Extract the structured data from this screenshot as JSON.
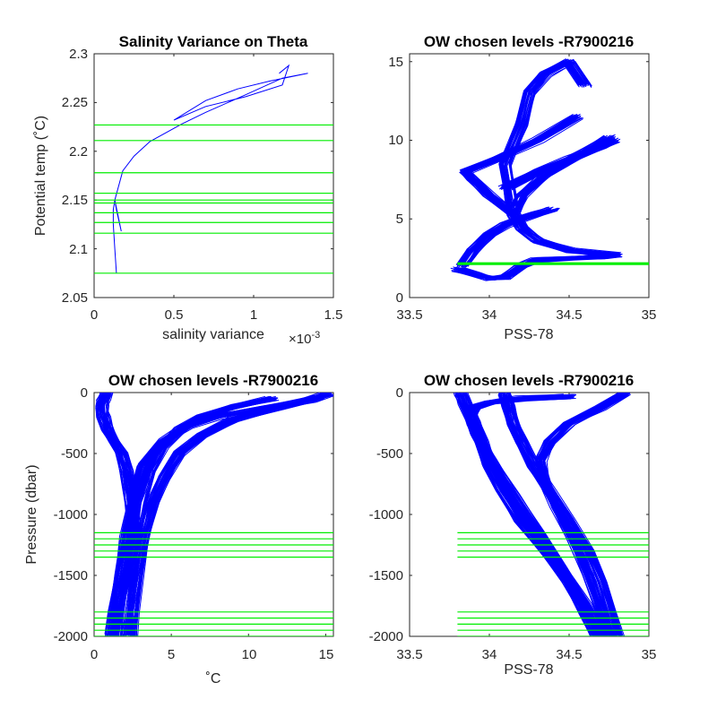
{
  "colors": {
    "profile": "#0000ff",
    "level": "#00ee00",
    "axis": "#262626"
  },
  "chart_data": [
    {
      "type": "line",
      "title": "Salinity Variance on Theta",
      "xlabel": "salinity variance",
      "xlabel_exponent": "×10",
      "xlabel_exponent_power": "-3",
      "ylabel": "Potential temp (˚C)",
      "xlim": [
        0,
        1.5
      ],
      "ylim": [
        2.05,
        2.3
      ],
      "xticks": [
        "0",
        "0.5",
        "1",
        "1.5"
      ],
      "yticks": [
        "2.05",
        "2.1",
        "2.15",
        "2.2",
        "2.25",
        "2.3"
      ],
      "grid": false,
      "series": [
        {
          "x": [
            0.14,
            0.13,
            0.12,
            0.12,
            0.13,
            0.17,
            0.14,
            0.13,
            0.18,
            0.25,
            0.35,
            0.55,
            0.7,
            0.95,
            1.18,
            1.34,
            1.1,
            0.9,
            0.7,
            0.5,
            0.7,
            0.95,
            1.18,
            1.22,
            1.16
          ],
          "y": [
            2.075,
            2.1,
            2.125,
            2.14,
            2.15,
            2.118,
            2.14,
            2.15,
            2.18,
            2.195,
            2.21,
            2.228,
            2.24,
            2.258,
            2.275,
            2.28,
            2.272,
            2.264,
            2.252,
            2.232,
            2.246,
            2.256,
            2.268,
            2.288,
            2.28
          ]
        }
      ],
      "levels_y": [
        2.075,
        2.116,
        2.127,
        2.137,
        2.147,
        2.15,
        2.157,
        2.178,
        2.211,
        2.227
      ]
    },
    {
      "type": "line",
      "title": "OW chosen levels -R7900216",
      "xlabel": "PSS-78",
      "ylabel": "",
      "xlim": [
        33.5,
        35
      ],
      "ylim": [
        0,
        15.5
      ],
      "xticks": [
        "33.5",
        "34",
        "34.5",
        "35"
      ],
      "yticks": [
        "0",
        "5",
        "10",
        "15"
      ],
      "grid": false,
      "series": [
        {
          "x": [
            33.8,
            33.9,
            34.0,
            34.1,
            34.2,
            34.3,
            34.5,
            34.7,
            34.79
          ],
          "y": [
            1.8,
            1.5,
            1.2,
            1.3,
            2.0,
            2.4,
            2.5,
            2.6,
            2.7
          ]
        },
        {
          "x": [
            34.79,
            34.5,
            34.3,
            34.2,
            34.15,
            34.2,
            34.35,
            34.55,
            34.75
          ],
          "y": [
            2.7,
            3.0,
            3.6,
            4.4,
            5.3,
            6.5,
            7.8,
            9.0,
            10.2
          ]
        },
        {
          "x": [
            34.15,
            34.0,
            33.9,
            33.85,
            34.05,
            34.3,
            34.55
          ],
          "y": [
            5.3,
            6.5,
            7.5,
            8.0,
            8.8,
            10.0,
            11.5
          ]
        },
        {
          "x": [
            34.15,
            34.1,
            34.2,
            34.25,
            34.35,
            34.5,
            34.6
          ],
          "y": [
            5.3,
            8.5,
            11.0,
            13.0,
            14.2,
            15.0,
            13.5
          ]
        },
        {
          "x": [
            33.83,
            33.9,
            34.0,
            34.1,
            34.2,
            34.3,
            34.4
          ],
          "y": [
            2.0,
            3.0,
            4.0,
            4.6,
            5.0,
            5.3,
            5.6
          ]
        },
        {
          "x": [
            34.1,
            34.3,
            34.5,
            34.7,
            34.78
          ],
          "y": [
            7.0,
            8.0,
            8.8,
            9.6,
            10.0
          ]
        }
      ],
      "levels_x": [
        33.8,
        35
      ],
      "levels_y": [
        2.1,
        2.13,
        2.15,
        2.18,
        2.21
      ]
    },
    {
      "type": "line",
      "title": "OW chosen levels -R7900216",
      "xlabel": "˚C",
      "ylabel": "Pressure (dbar)",
      "xlim": [
        0,
        15.5
      ],
      "ylim": [
        -2000,
        0
      ],
      "xticks": [
        "0",
        "5",
        "10",
        "15"
      ],
      "yticks": [
        "-2000",
        "-1500",
        "-1000",
        "-500",
        "0"
      ],
      "grid": false,
      "series": [
        {
          "x": [
            1.1,
            1.3,
            1.7,
            2.1,
            2.5,
            3.2,
            4.5,
            6.0,
            8.0,
            11.0,
            14.0,
            15.2
          ],
          "y": [
            -2000,
            -1800,
            -1500,
            -1200,
            -900,
            -600,
            -400,
            -280,
            -200,
            -130,
            -60,
            -10
          ]
        },
        {
          "x": [
            2.4,
            2.5,
            2.8,
            3.2,
            3.8,
            4.5,
            5.5,
            7.0,
            9.0,
            12.0,
            14.5
          ],
          "y": [
            -2000,
            -1800,
            -1500,
            -1200,
            -900,
            -700,
            -500,
            -350,
            -220,
            -120,
            -40
          ]
        },
        {
          "x": [
            1.6,
            1.8,
            2.2,
            2.6,
            3.0,
            3.6,
            4.4,
            5.6,
            7.0,
            9.0,
            11.5
          ],
          "y": [
            -2000,
            -1800,
            -1500,
            -1200,
            -900,
            -650,
            -450,
            -300,
            -200,
            -120,
            -50
          ]
        },
        {
          "x": [
            2.6,
            2.4,
            2.1,
            1.8,
            1.3,
            0.9,
            0.6,
            0.5,
            0.6,
            0.8
          ],
          "y": [
            -1200,
            -900,
            -650,
            -500,
            -400,
            -300,
            -200,
            -120,
            -60,
            0
          ]
        }
      ],
      "levels_y": [
        -1150,
        -1200,
        -1250,
        -1300,
        -1350,
        -1800,
        -1850,
        -1900,
        -1950,
        -2000
      ]
    },
    {
      "type": "line",
      "title": "OW chosen levels -R7900216",
      "xlabel": "PSS-78",
      "ylabel": "",
      "xlim": [
        33.5,
        35
      ],
      "ylim": [
        -2000,
        0
      ],
      "xticks": [
        "33.5",
        "34",
        "34.5",
        "35"
      ],
      "yticks": [
        "-2000",
        "-1500",
        "-1000",
        "-500",
        "0"
      ],
      "grid": false,
      "series": [
        {
          "x": [
            34.67,
            34.6,
            34.5,
            34.35,
            34.2,
            34.08,
            34.0,
            33.95,
            33.9,
            33.85,
            33.82
          ],
          "y": [
            -2000,
            -1800,
            -1550,
            -1300,
            -1050,
            -800,
            -600,
            -400,
            -250,
            -100,
            0
          ]
        },
        {
          "x": [
            34.8,
            34.76,
            34.7,
            34.62,
            34.5,
            34.38,
            34.28,
            34.2,
            34.15,
            34.12,
            34.1
          ],
          "y": [
            -2000,
            -1800,
            -1550,
            -1300,
            -1050,
            -800,
            -600,
            -400,
            -250,
            -100,
            0
          ]
        },
        {
          "x": [
            34.75,
            34.7,
            34.62,
            34.52,
            34.42,
            34.35,
            34.32,
            34.38,
            34.5,
            34.7,
            34.85
          ],
          "y": [
            -2000,
            -1800,
            -1500,
            -1200,
            -950,
            -750,
            -550,
            -400,
            -250,
            -120,
            0
          ]
        },
        {
          "x": [
            34.7,
            34.6,
            34.45,
            34.3,
            34.15,
            34.0,
            33.92,
            33.88,
            33.9,
            34.0,
            34.2,
            34.5
          ],
          "y": [
            -2000,
            -1750,
            -1450,
            -1150,
            -850,
            -550,
            -350,
            -200,
            -120,
            -80,
            -50,
            -30
          ]
        }
      ],
      "levels_x": [
        33.8,
        35
      ],
      "levels_y": [
        -1150,
        -1200,
        -1250,
        -1300,
        -1350,
        -1800,
        -1850,
        -1900,
        -1950,
        -2000
      ]
    }
  ]
}
